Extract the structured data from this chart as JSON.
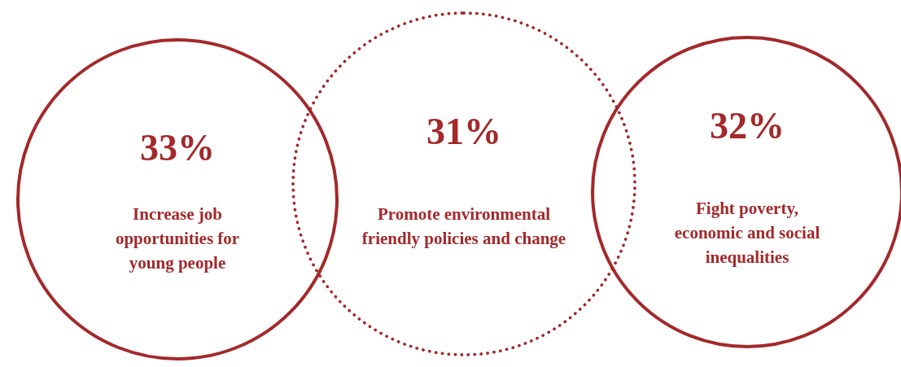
{
  "chart_data": {
    "type": "other",
    "categories": [
      "Increase job opportunities for young people",
      "Promote environmental friendly policies and change",
      "Fight poverty, economic and social inequalities"
    ],
    "values": [
      33,
      31,
      32
    ],
    "value_labels": [
      "33%",
      "31%",
      "32%"
    ],
    "color": "#a3292b"
  }
}
